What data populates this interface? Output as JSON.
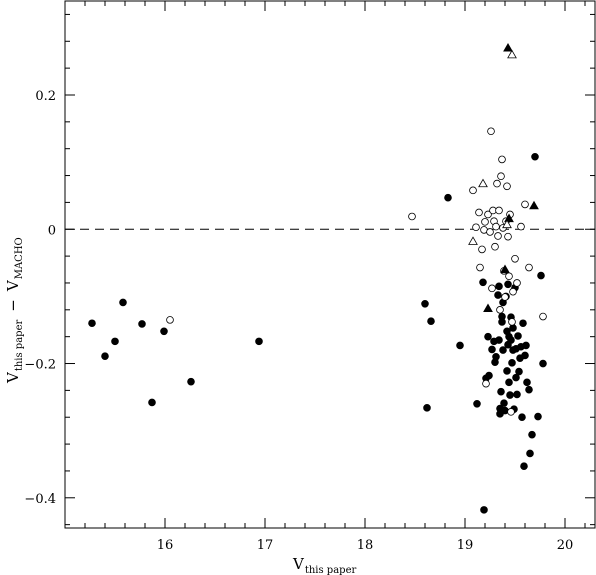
{
  "chart_data": {
    "type": "scatter",
    "xlabel": "V",
    "xlabel_sub": "this paper",
    "ylabel_main": "V",
    "ylabel_main_sub": "this paper",
    "ylabel_dash": "−",
    "ylabel_second": "V",
    "ylabel_second_sub": "MACHO",
    "xlim": [
      15.0,
      20.3
    ],
    "ylim": [
      -0.445,
      0.34
    ],
    "xticks": [
      16,
      17,
      18,
      19,
      20
    ],
    "xtick_labels": [
      "16",
      "17",
      "18",
      "19",
      "20"
    ],
    "yticks": [
      -0.4,
      -0.2,
      0,
      0.2
    ],
    "ytick_labels": [
      "−0.4",
      "−0.2",
      "0",
      "0.2"
    ],
    "reference_line": {
      "y": 0,
      "style": "dashed"
    },
    "grid": false,
    "series": [
      {
        "marker": "filled-circle",
        "points": [
          [
            15.27,
            -0.14
          ],
          [
            15.4,
            -0.189
          ],
          [
            15.5,
            -0.167
          ],
          [
            15.58,
            -0.109
          ],
          [
            15.77,
            -0.141
          ],
          [
            15.87,
            -0.258
          ],
          [
            15.99,
            -0.152
          ],
          [
            16.26,
            -0.227
          ],
          [
            16.94,
            -0.167
          ],
          [
            18.6,
            -0.111
          ],
          [
            18.62,
            -0.266
          ],
          [
            18.66,
            -0.137
          ],
          [
            18.83,
            0.047
          ],
          [
            18.95,
            -0.173
          ],
          [
            19.12,
            -0.26
          ],
          [
            19.18,
            -0.079
          ],
          [
            19.19,
            -0.418
          ],
          [
            19.21,
            -0.222
          ],
          [
            19.23,
            -0.16
          ],
          [
            19.24,
            -0.218
          ],
          [
            19.27,
            -0.179
          ],
          [
            19.29,
            -0.167
          ],
          [
            19.3,
            -0.198
          ],
          [
            19.31,
            -0.19
          ],
          [
            19.33,
            -0.098
          ],
          [
            19.34,
            -0.085
          ],
          [
            19.34,
            -0.165
          ],
          [
            19.35,
            -0.267
          ],
          [
            19.35,
            -0.275
          ],
          [
            19.36,
            -0.242
          ],
          [
            19.37,
            -0.13
          ],
          [
            19.37,
            -0.138
          ],
          [
            19.38,
            -0.109
          ],
          [
            19.38,
            -0.18
          ],
          [
            19.39,
            -0.259
          ],
          [
            19.4,
            -0.27
          ],
          [
            19.41,
            -0.1
          ],
          [
            19.42,
            -0.211
          ],
          [
            19.42,
            -0.152
          ],
          [
            19.43,
            -0.172
          ],
          [
            19.43,
            -0.082
          ],
          [
            19.44,
            -0.228
          ],
          [
            19.44,
            -0.16
          ],
          [
            19.45,
            -0.247
          ],
          [
            19.46,
            -0.131
          ],
          [
            19.46,
            -0.165
          ],
          [
            19.47,
            -0.199
          ],
          [
            19.48,
            -0.147
          ],
          [
            19.48,
            -0.18
          ],
          [
            19.49,
            -0.268
          ],
          [
            19.5,
            -0.087
          ],
          [
            19.51,
            -0.221
          ],
          [
            19.51,
            -0.178
          ],
          [
            19.52,
            -0.246
          ],
          [
            19.53,
            -0.159
          ],
          [
            19.54,
            -0.212
          ],
          [
            19.55,
            -0.192
          ],
          [
            19.56,
            -0.175
          ],
          [
            19.57,
            -0.28
          ],
          [
            19.58,
            -0.14
          ],
          [
            19.59,
            -0.353
          ],
          [
            19.6,
            -0.188
          ],
          [
            19.61,
            -0.173
          ],
          [
            19.62,
            -0.228
          ],
          [
            19.64,
            -0.239
          ],
          [
            19.65,
            -0.334
          ],
          [
            19.67,
            -0.306
          ],
          [
            19.7,
            0.108
          ],
          [
            19.73,
            -0.279
          ],
          [
            19.76,
            -0.069
          ],
          [
            19.78,
            -0.2
          ]
        ]
      },
      {
        "marker": "open-circle",
        "points": [
          [
            16.05,
            -0.135
          ],
          [
            18.47,
            0.019
          ],
          [
            19.08,
            0.058
          ],
          [
            19.11,
            0.003
          ],
          [
            19.14,
            0.025
          ],
          [
            19.15,
            -0.057
          ],
          [
            19.17,
            -0.03
          ],
          [
            19.19,
            -0.001
          ],
          [
            19.2,
            0.011
          ],
          [
            19.21,
            -0.23
          ],
          [
            19.23,
            0.022
          ],
          [
            19.25,
            -0.004
          ],
          [
            19.26,
            0.146
          ],
          [
            19.27,
            -0.088
          ],
          [
            19.28,
            0.028
          ],
          [
            19.29,
            0.012
          ],
          [
            19.3,
            -0.026
          ],
          [
            19.31,
            0.004
          ],
          [
            19.32,
            0.068
          ],
          [
            19.33,
            -0.01
          ],
          [
            19.34,
            0.028
          ],
          [
            19.35,
            -0.12
          ],
          [
            19.36,
            0.079
          ],
          [
            19.37,
            0.104
          ],
          [
            19.38,
            0.002
          ],
          [
            19.39,
            -0.062
          ],
          [
            19.4,
            -0.101
          ],
          [
            19.41,
            0.012
          ],
          [
            19.42,
            0.064
          ],
          [
            19.43,
            -0.011
          ],
          [
            19.44,
            -0.07
          ],
          [
            19.45,
            0.022
          ],
          [
            19.46,
            -0.272
          ],
          [
            19.47,
            -0.138
          ],
          [
            19.48,
            -0.093
          ],
          [
            19.5,
            -0.044
          ],
          [
            19.52,
            -0.08
          ],
          [
            19.56,
            0.004
          ],
          [
            19.6,
            0.037
          ],
          [
            19.64,
            -0.057
          ],
          [
            19.78,
            -0.13
          ]
        ]
      },
      {
        "marker": "filled-triangle",
        "points": [
          [
            19.23,
            -0.118
          ],
          [
            19.4,
            -0.06
          ],
          [
            19.43,
            0.27
          ],
          [
            19.44,
            0.016
          ],
          [
            19.69,
            0.035
          ]
        ]
      },
      {
        "marker": "open-triangle",
        "points": [
          [
            19.08,
            -0.018
          ],
          [
            19.18,
            0.068
          ],
          [
            19.42,
            0.007
          ],
          [
            19.47,
            0.26
          ]
        ]
      }
    ]
  }
}
